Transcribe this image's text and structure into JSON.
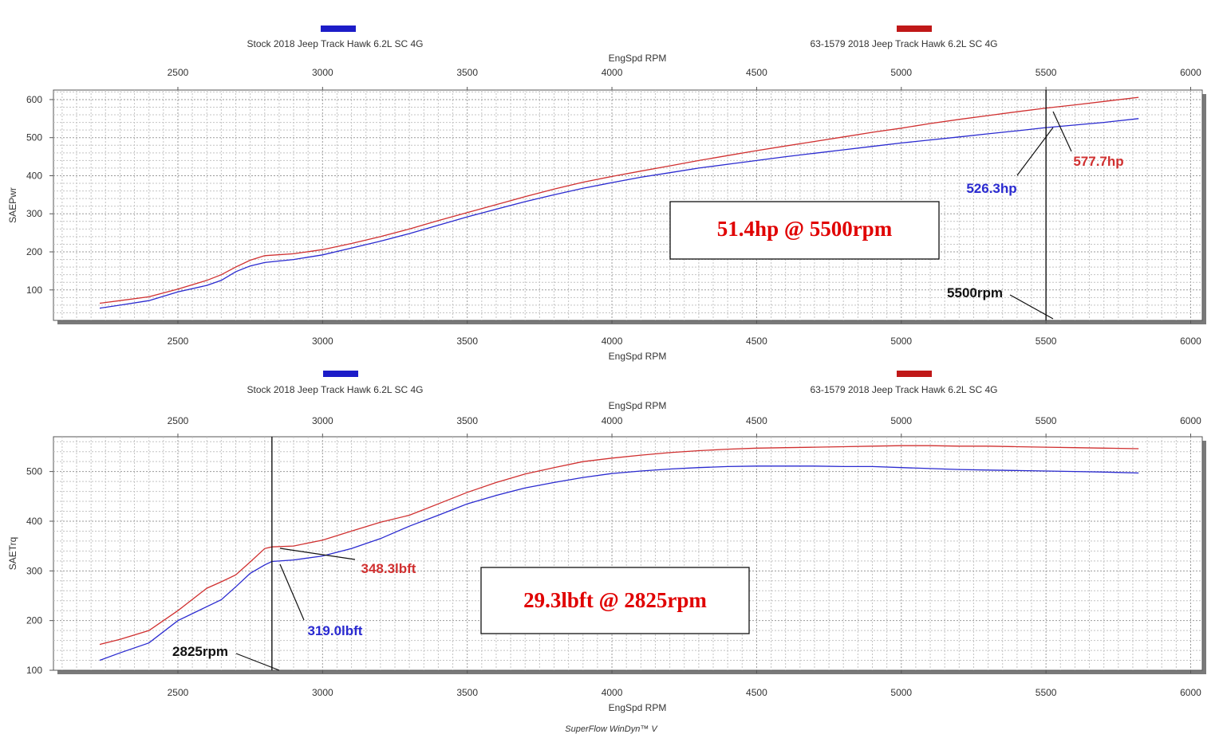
{
  "colors": {
    "stock": "#2a2ad0",
    "modified": "#d03030",
    "stock_swatch": "#1c1cc8",
    "modified_swatch": "#c01818",
    "annotation_box_text": "#e00000"
  },
  "legend": {
    "stock_label": "Stock 2018 Jeep Track Hawk 6.2L SC 4G",
    "modified_label": "63-1579 2018 Jeep Track Hawk 6.2L SC 4G"
  },
  "footer": "SuperFlow WinDyn™ V",
  "chart_data": [
    {
      "type": "line",
      "xlabel": "EngSpd RPM",
      "ylabel": "SAEPwr",
      "xticks": [
        2500,
        3000,
        3500,
        4000,
        4500,
        5000,
        5500,
        6000
      ],
      "yticks": [
        100,
        200,
        300,
        400,
        500,
        600
      ],
      "xlim": [
        2070,
        6040
      ],
      "ylim": [
        20,
        625
      ],
      "grid": true,
      "series": [
        {
          "name": "Stock 2018 Jeep Track Hawk 6.2L SC 4G",
          "color": "#2a2ad0",
          "x": [
            2230,
            2300,
            2400,
            2500,
            2600,
            2650,
            2700,
            2750,
            2800,
            2900,
            3000,
            3100,
            3200,
            3300,
            3400,
            3500,
            3600,
            3700,
            3800,
            3900,
            4000,
            4100,
            4200,
            4300,
            4400,
            4500,
            4600,
            4700,
            4800,
            4900,
            5000,
            5100,
            5200,
            5300,
            5400,
            5500,
            5600,
            5700,
            5820
          ],
          "y": [
            52,
            60,
            72,
            95,
            112,
            125,
            148,
            163,
            172,
            180,
            192,
            210,
            228,
            248,
            270,
            292,
            312,
            332,
            350,
            367,
            382,
            396,
            408,
            420,
            430,
            440,
            450,
            459,
            468,
            477,
            486,
            494,
            502,
            510,
            518,
            526.3,
            533,
            540,
            550
          ]
        },
        {
          "name": "63-1579 2018 Jeep Track Hawk 6.2L SC 4G",
          "color": "#d03030",
          "x": [
            2230,
            2300,
            2400,
            2500,
            2600,
            2650,
            2700,
            2750,
            2800,
            2900,
            3000,
            3100,
            3200,
            3300,
            3400,
            3500,
            3600,
            3700,
            3800,
            3900,
            4000,
            4100,
            4200,
            4300,
            4400,
            4500,
            4600,
            4700,
            4800,
            4900,
            5000,
            5100,
            5200,
            5300,
            5400,
            5500,
            5600,
            5700,
            5820
          ],
          "y": [
            65,
            72,
            82,
            102,
            125,
            140,
            160,
            178,
            190,
            195,
            206,
            222,
            240,
            260,
            282,
            303,
            324,
            345,
            365,
            383,
            398,
            412,
            426,
            440,
            453,
            466,
            478,
            490,
            502,
            514,
            525,
            537,
            548,
            558,
            568,
            577.7,
            586,
            595,
            606
          ]
        }
      ],
      "annotations": {
        "box_text": "51.4hp @ 5500rpm",
        "stock_value": "526.3hp",
        "modified_value": "577.7hp",
        "rpm_marker": "5500rpm",
        "marker_x": 5500
      }
    },
    {
      "type": "line",
      "xlabel": "EngSpd RPM",
      "ylabel": "SAETrq",
      "xticks": [
        2500,
        3000,
        3500,
        4000,
        4500,
        5000,
        5500,
        6000
      ],
      "yticks": [
        100,
        200,
        300,
        400,
        500
      ],
      "xlim": [
        2070,
        6040
      ],
      "ylim": [
        100,
        570
      ],
      "grid": true,
      "series": [
        {
          "name": "Stock 2018 Jeep Track Hawk 6.2L SC 4G",
          "color": "#2a2ad0",
          "x": [
            2230,
            2300,
            2400,
            2500,
            2600,
            2650,
            2700,
            2750,
            2800,
            2825,
            2900,
            3000,
            3100,
            3200,
            3300,
            3400,
            3500,
            3600,
            3700,
            3800,
            3900,
            4000,
            4100,
            4200,
            4300,
            4400,
            4500,
            4600,
            4700,
            4800,
            4900,
            5000,
            5100,
            5200,
            5300,
            5400,
            5500,
            5600,
            5700,
            5820
          ],
          "y": [
            120,
            135,
            155,
            200,
            228,
            242,
            268,
            295,
            312,
            319.0,
            322,
            330,
            345,
            365,
            390,
            412,
            435,
            452,
            467,
            478,
            488,
            496,
            501,
            505,
            508,
            510,
            511,
            511,
            511,
            510,
            510,
            508,
            506,
            504,
            503,
            502,
            501,
            500,
            499,
            497
          ]
        },
        {
          "name": "63-1579 2018 Jeep Track Hawk 6.2L SC 4G",
          "color": "#d03030",
          "x": [
            2230,
            2300,
            2400,
            2500,
            2600,
            2650,
            2700,
            2750,
            2800,
            2825,
            2900,
            3000,
            3100,
            3200,
            3300,
            3400,
            3500,
            3600,
            3700,
            3800,
            3900,
            4000,
            4100,
            4200,
            4300,
            4400,
            4500,
            4600,
            4700,
            4800,
            4900,
            5000,
            5100,
            5200,
            5300,
            5400,
            5500,
            5600,
            5700,
            5820
          ],
          "y": [
            152,
            162,
            180,
            220,
            265,
            278,
            292,
            318,
            345,
            348.3,
            350,
            362,
            380,
            398,
            412,
            435,
            458,
            478,
            495,
            508,
            520,
            527,
            533,
            538,
            542,
            545,
            547,
            548,
            549,
            550,
            551,
            552,
            552,
            551,
            551,
            550,
            549,
            548,
            547,
            546
          ]
        }
      ],
      "annotations": {
        "box_text": "29.3lbft @ 2825rpm",
        "stock_value": "319.0lbft",
        "modified_value": "348.3lbft",
        "rpm_marker": "2825rpm",
        "marker_x": 2825
      }
    }
  ]
}
